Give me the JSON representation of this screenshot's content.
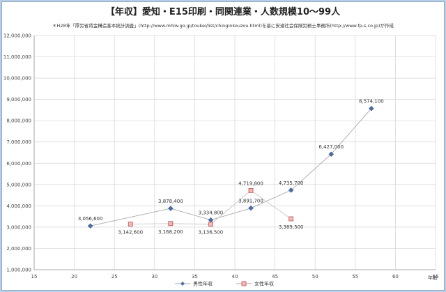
{
  "chart_data": {
    "type": "line",
    "title": "【年収】愛知・E15印刷・同関連業・人数規模10〜99人",
    "note": "＊H28年「厚労省賃金構造基本統計調査」(http://www.mhlw.go.jp/toukei/list/chinginkouzou.html)を基に安達社会保険労務士事務所(http://www.fp-s.co.jp)が作成",
    "xlabel": "年齢",
    "xlim": [
      15,
      65
    ],
    "xticks": [
      15,
      20,
      25,
      30,
      35,
      40,
      45,
      50,
      55,
      60,
      65
    ],
    "ylim": [
      1000000,
      12000000
    ],
    "yticks": [
      "1,000,000",
      "2,000,000",
      "3,000,000",
      "4,000,000",
      "5,000,000",
      "6,000,000",
      "7,000,000",
      "8,000,000",
      "9,000,000",
      "10,000,000",
      "11,000,000",
      "12,000,000"
    ],
    "grid": true,
    "legend": "bottom",
    "series": [
      {
        "name": "男性年収",
        "color": "#4a6fa5",
        "marker": "diamond",
        "points": [
          {
            "x": 22,
            "y": 3056600,
            "label": "3,056,600"
          },
          {
            "x": 32,
            "y": 3878400,
            "label": "3,878,400"
          },
          {
            "x": 37,
            "y": 3334800,
            "label": "3,334,800"
          },
          {
            "x": 42,
            "y": 3891700,
            "label": "3,891,700"
          },
          {
            "x": 47,
            "y": 4735700,
            "label": "4,735,700"
          },
          {
            "x": 52,
            "y": 6427000,
            "label": "6,427,000"
          },
          {
            "x": 57,
            "y": 8574100,
            "label": "8,574,100"
          }
        ]
      },
      {
        "name": "女性年収",
        "color": "#d9868a",
        "marker": "square",
        "points": [
          {
            "x": 27,
            "y": 3142600,
            "label": "3,142,600"
          },
          {
            "x": 32,
            "y": 3168200,
            "label": "3,168,200"
          },
          {
            "x": 37,
            "y": 3136500,
            "label": "3,136,500"
          },
          {
            "x": 42,
            "y": 4719800,
            "label": "4,719,800"
          },
          {
            "x": 47,
            "y": 3389500,
            "label": "3,389,500"
          }
        ]
      }
    ]
  }
}
